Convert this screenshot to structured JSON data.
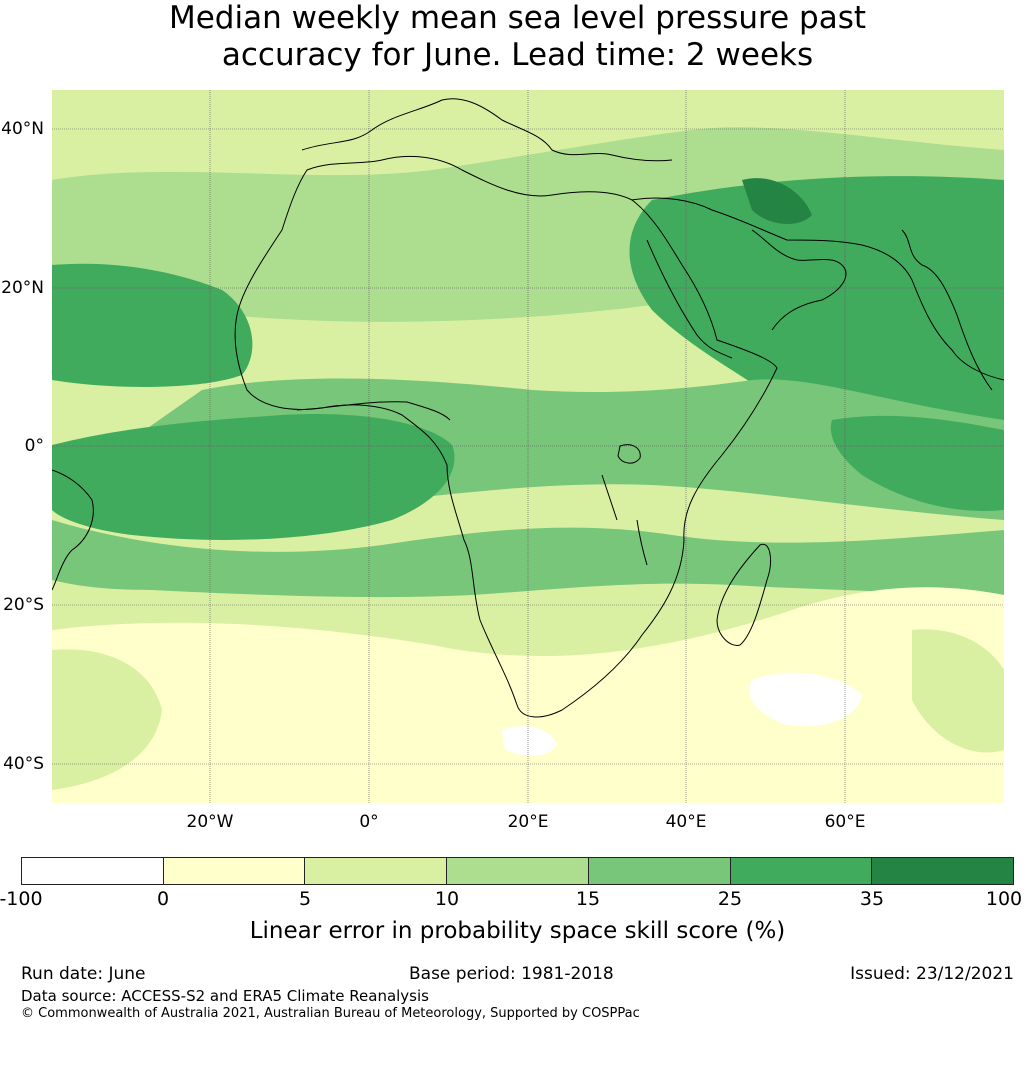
{
  "title_line1": "Median weekly mean sea level pressure past",
  "title_line2": "accuracy for June. Lead time: 2 weeks",
  "map": {
    "lat_labels": [
      "40°N",
      "20°N",
      "0°",
      "20°S",
      "40°S"
    ],
    "lon_labels": [
      "20°W",
      "0°",
      "20°E",
      "40°E",
      "60°E"
    ],
    "gridline_color": "#555555",
    "coastline_color": "#000000"
  },
  "colorbar": {
    "ticks": [
      "-100",
      "0",
      "5",
      "10",
      "15",
      "25",
      "35",
      "100"
    ],
    "colors": [
      "#ffffff",
      "#ffffcc",
      "#d9f0a3",
      "#addd8e",
      "#78c679",
      "#41ab5d",
      "#238443"
    ],
    "label": "Linear error in probability space skill score (%)"
  },
  "footer": {
    "run_date": "Run date: June",
    "base_period": "Base period: 1981-2018",
    "issued": "Issued: 23/12/2021",
    "data_source": "Data source: ACCESS-S2 and ERA5 Climate Reanalysis",
    "copyright": "© Commonwealth of Australia 2021, Australian Bureau of Meteorology, Supported by COSPPac"
  }
}
